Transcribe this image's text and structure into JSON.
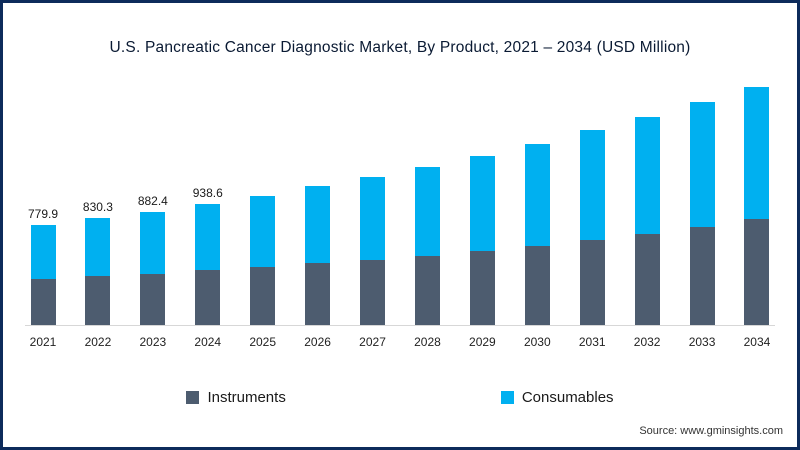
{
  "source": {
    "text": "Source: www.gminsights.com"
  },
  "chart_data": {
    "type": "bar",
    "stacked": true,
    "title": "U.S. Pancreatic Cancer Diagnostic Market, By Product, 2021 – 2034 (USD Million)",
    "xlabel": "",
    "ylabel": "",
    "ylim": [
      0,
      1900
    ],
    "grid": false,
    "legend_position": "bottom",
    "categories": [
      "2021",
      "2022",
      "2023",
      "2024",
      "2025",
      "2026",
      "2027",
      "2028",
      "2029",
      "2030",
      "2031",
      "2032",
      "2033",
      "2034"
    ],
    "series": [
      {
        "name": "Instruments",
        "color": "#4d5c6f",
        "values": [
          359,
          381,
          399,
          429,
          452,
          477,
          507,
          538,
          577,
          616,
          656,
          702,
          757,
          819
        ]
      },
      {
        "name": "Consumables",
        "color": "#00b0f0",
        "values": [
          421,
          449,
          483,
          510,
          552,
          597,
          642,
          692,
          739,
          792,
          851,
          910,
          968,
          1027
        ]
      }
    ],
    "totals": [
      779.9,
      830.3,
      882.4,
      938.6,
      1004,
      1074,
      1149,
      1230,
      1316,
      1408,
      1507,
      1612,
      1725,
      1846
    ],
    "bar_labels": [
      "779.9",
      "830.3",
      "882.4",
      "938.6",
      "",
      "",
      "",
      "",
      "",
      "",
      "",
      "",
      "",
      ""
    ]
  }
}
